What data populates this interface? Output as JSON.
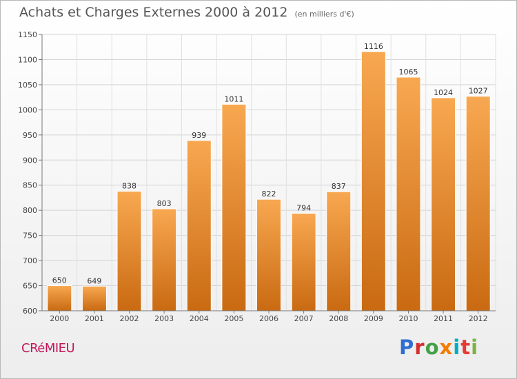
{
  "title": "Achats et Charges Externes 2000 à 2012",
  "unit_note": "(en milliers d'€)",
  "city": "CRéMIEU",
  "brand": {
    "letters": [
      "P",
      "r",
      "o",
      "x",
      "i",
      "t",
      "i"
    ],
    "colors": [
      "#2e6fd1",
      "#d32f2f",
      "#43a047",
      "#f57c00",
      "#00acc1",
      "#e53935",
      "#7cb342"
    ]
  },
  "chart_data": {
    "type": "bar",
    "categories": [
      "2000",
      "2001",
      "2002",
      "2003",
      "2004",
      "2005",
      "2006",
      "2007",
      "2008",
      "2009",
      "2010",
      "2011",
      "2012"
    ],
    "values": [
      650,
      649,
      838,
      803,
      939,
      1011,
      822,
      794,
      837,
      1116,
      1065,
      1024,
      1027
    ],
    "data_labels": [
      "650",
      "649",
      "838",
      "803",
      "939",
      "1011",
      "822",
      "794",
      "837",
      "1116",
      "1065",
      "1024",
      "1027"
    ],
    "ylim": [
      600,
      1150
    ],
    "yticks": [
      600,
      650,
      700,
      750,
      800,
      850,
      900,
      950,
      1000,
      1050,
      1100,
      1150
    ],
    "grid": true,
    "bar_color": "#f0902e"
  }
}
